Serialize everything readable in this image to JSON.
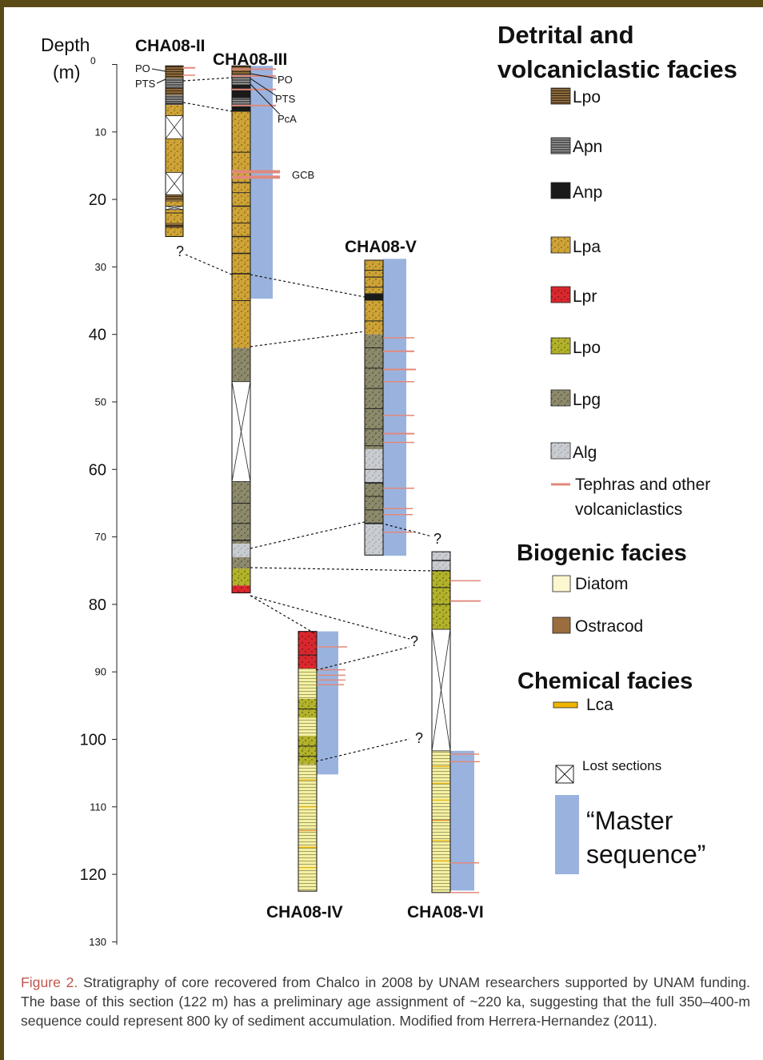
{
  "axis": {
    "title_line1": "Depth",
    "title_line2": "(m)",
    "title_sup": "0",
    "ticks": [
      "0",
      "10",
      "20",
      "30",
      "40",
      "50",
      "60",
      "70",
      "80",
      "90",
      "100",
      "110",
      "120",
      "130"
    ]
  },
  "cores": {
    "c2": "CHA08-II",
    "c3": "CHA08-III",
    "c5": "CHA08-V",
    "c4": "CHA08-IV",
    "c6": "CHA08-VI"
  },
  "annotations": {
    "po_a": "PO",
    "pts_a": "PTS",
    "po_b": "PO",
    "pts_b": "PTS",
    "pca": "PcA",
    "gcb": "GCB",
    "q1": "?",
    "q2": "?",
    "q3": "?",
    "q4": "?"
  },
  "legend": {
    "detrital_title_1": "Detrital and",
    "detrital_title_2": "volcaniclastic facies",
    "lpo_brown": "Lpo",
    "apn": "Apn",
    "anp": "Anp",
    "lpa": "Lpa",
    "lpr": "Lpr",
    "lpo_green": "Lpo",
    "lpg": "Lpg",
    "alg": "Alg",
    "tephra_1": "Tephras and other",
    "tephra_2": "volcaniclastics",
    "biogenic_title": "Biogenic facies",
    "diatom": "Diatom",
    "ostracod": "Ostracod",
    "chemical_title": "Chemical facies",
    "lca": "Lca",
    "lost": "Lost sections",
    "master_1": "“Master",
    "master_2": "sequence”"
  },
  "colors": {
    "frame": "#5a4a16",
    "caption_label": "#c0564e",
    "master": "#9ab3de",
    "tephra": "#e0897c",
    "lpa": "#cfa436",
    "lpr": "#d9272e",
    "lpo_green": "#b3b22a",
    "lpg": "#8e8a6c",
    "alg": "#c9ccd1",
    "diatom": "#f4f0a2",
    "lpo_brown": "#8c6a3c",
    "anp": "#1a1a1a",
    "apn": "#555555",
    "ostracod": "#9a6c3e",
    "lca": "#f0b400"
  },
  "caption": {
    "label": "Figure 2.",
    "text": " Stratigraphy of core recovered from Chalco in 2008 by UNAM researchers supported by UNAM funding. The base of this section (122 m) has a preliminary age assignment of ~220 ka, suggesting that the full 350–400-m sequence could represent 800 ky of sediment accumulation. Modified from Herrera-Hernandez (2011)."
  }
}
